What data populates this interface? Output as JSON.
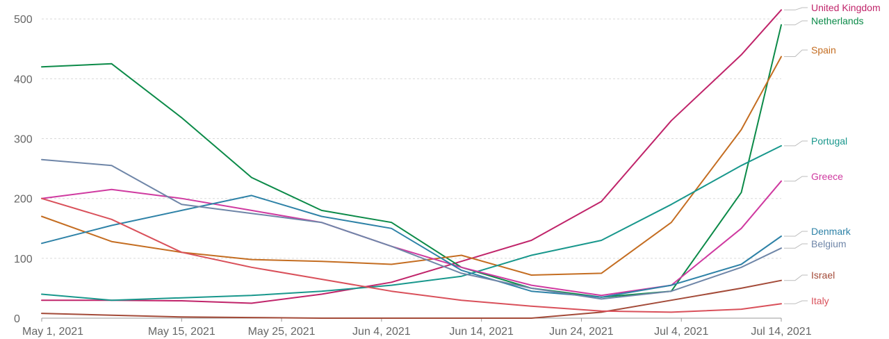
{
  "chart_data": {
    "type": "line",
    "title": "",
    "xlabel": "",
    "ylabel": "",
    "ylim": [
      0,
      520
    ],
    "grid": true,
    "legend": "right",
    "y_ticks": [
      "0",
      "100",
      "200",
      "300",
      "400",
      "500"
    ],
    "x_ticks": [
      "May 1, 2021",
      "May 15, 2021",
      "May 25, 2021",
      "Jun 4, 2021",
      "Jun 14, 2021",
      "Jun 24, 2021",
      "Jul 4, 2021",
      "Jul 14, 2021"
    ],
    "dates": [
      "2021-05-01",
      "2021-05-08",
      "2021-05-15",
      "2021-05-22",
      "2021-05-29",
      "2021-06-05",
      "2021-06-12",
      "2021-06-19",
      "2021-06-26",
      "2021-07-03",
      "2021-07-10",
      "2021-07-14"
    ],
    "series": [
      {
        "name": "United Kingdom",
        "color": "#c0246a",
        "values": [
          30,
          30,
          29,
          25,
          40,
          60,
          95,
          130,
          195,
          330,
          440,
          515
        ]
      },
      {
        "name": "Netherlands",
        "color": "#0b8a48",
        "values": [
          420,
          425,
          335,
          235,
          180,
          160,
          85,
          50,
          35,
          45,
          210,
          490
        ]
      },
      {
        "name": "Spain",
        "color": "#c46d21",
        "values": [
          170,
          128,
          110,
          98,
          95,
          90,
          105,
          72,
          75,
          160,
          315,
          437
        ]
      },
      {
        "name": "Portugal",
        "color": "#18978c",
        "values": [
          40,
          30,
          34,
          38,
          45,
          55,
          70,
          105,
          130,
          190,
          255,
          288
        ]
      },
      {
        "name": "Greece",
        "color": "#cf3aa0",
        "values": [
          200,
          215,
          200,
          180,
          160,
          120,
          85,
          55,
          38,
          55,
          150,
          229
        ]
      },
      {
        "name": "Denmark",
        "color": "#2e82a7",
        "values": [
          125,
          155,
          180,
          205,
          170,
          150,
          80,
          45,
          35,
          55,
          90,
          137
        ]
      },
      {
        "name": "Belgium",
        "color": "#6f86a8",
        "values": [
          265,
          255,
          190,
          175,
          160,
          120,
          75,
          50,
          32,
          45,
          85,
          117
        ]
      },
      {
        "name": "Israel",
        "color": "#a34a38",
        "values": [
          8,
          5,
          2,
          1,
          0,
          0,
          0,
          0,
          10,
          30,
          50,
          63
        ]
      },
      {
        "name": "Italy",
        "color": "#d9505a",
        "values": [
          200,
          165,
          110,
          85,
          65,
          45,
          30,
          20,
          12,
          10,
          15,
          24
        ]
      }
    ]
  }
}
